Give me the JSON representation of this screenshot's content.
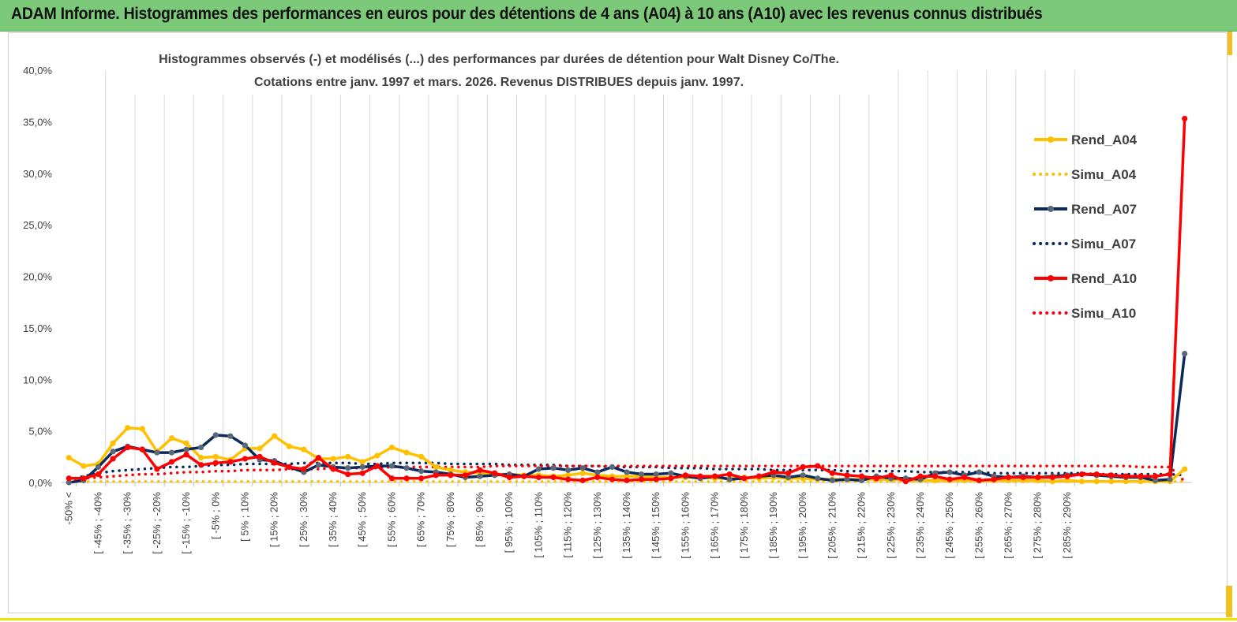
{
  "banner": {
    "title": "ADAM Informe. Histogrammes des performances en euros pour des détentions de 4 ans (A04) à 10 ans (A10) avec les revenus connus distribués"
  },
  "colors": {
    "banner_bg": "#7dc97a",
    "a04": "#ffc000",
    "a07": "#0b2a5c",
    "a10": "#ff0000",
    "grid": "#d9d9d9"
  },
  "chart_data": {
    "type": "line",
    "title": "Histogrammes observés (-) et modélisés (...) des performances par durées de détention pour Walt Disney Co/The.",
    "subtitle": "Cotations entre janv. 1997 et mars. 2026. Revenus DISTRIBUES depuis janv. 1997.",
    "ylim": [
      0,
      40
    ],
    "yticks": [
      "0,0%",
      "5,0%",
      "10,0%",
      "15,0%",
      "20,0%",
      "25,0%",
      "30,0%",
      "35,0%",
      "40,0%"
    ],
    "grid": "vertical lines at each labelled category",
    "legend_position": "right",
    "x_labels": [
      "-50% <",
      "[ -45% ; -40%",
      "[ -35% ; -30%",
      "[ -25% ; -20%",
      "[ -15% ; -10%",
      "[ -5% ; 0%",
      "[ 5% ; 10%",
      "[ 15% ; 20%",
      "[ 25% ; 30%",
      "[ 35% ; 40%",
      "[ 45% ; 50%",
      "[ 55% ; 60%",
      "[ 65% ; 70%",
      "[ 75% ; 80%",
      "[ 85% ; 90%",
      "[ 95% ; 100%",
      "[ 105% ; 110%",
      "[ 115% ; 120%",
      "[ 125% ; 130%",
      "[ 135% ; 140%",
      "[ 145% ; 150%",
      "[ 155% ; 160%",
      "[ 165% ; 170%",
      "[ 175% ; 180%",
      "[ 185% ; 190%",
      "[ 195% ; 200%",
      "[ 205% ; 210%",
      "[ 215% ; 220%",
      "[ 225% ; 230%",
      "[ 235% ; 240%",
      "[ 245% ; 250%",
      "[ 255% ; 260%",
      "[ 265% ; 270%",
      "[ 275% ; 280%",
      "[ 285% ; 290%"
    ],
    "series": [
      {
        "name": "Rend_A04",
        "style": "solid",
        "color": "#ffc000",
        "values": [
          2.4,
          1.6,
          1.8,
          3.8,
          5.3,
          5.2,
          3.0,
          4.3,
          3.8,
          2.4,
          2.5,
          2.2,
          3.3,
          3.3,
          4.5,
          3.5,
          3.2,
          2.3,
          2.3,
          2.5,
          2.0,
          2.6,
          3.4,
          2.9,
          2.5,
          1.5,
          1.2,
          1.0,
          0.9,
          0.8,
          0.8,
          0.7,
          0.7,
          0.6,
          0.7,
          0.9,
          0.7,
          0.6,
          0.6,
          0.6,
          0.5,
          0.5,
          0.5,
          0.5,
          0.4,
          0.4,
          0.5,
          0.4,
          0.5,
          0.4,
          0.4,
          0.3,
          0.3,
          0.3,
          0.3,
          0.3,
          0.3,
          0.2,
          0.2,
          0.2,
          0.2,
          0.2,
          0.2,
          0.2,
          0.2,
          0.2,
          0.2,
          0.1,
          0.2,
          0.1,
          0.1,
          0.1,
          0.1,
          0.1,
          0.1,
          0.1,
          1.3
        ]
      },
      {
        "name": "Simu_A04",
        "style": "dotted",
        "color": "#ffc000",
        "values": [
          0.1,
          0.1,
          0.1,
          0.1,
          0.1,
          0.1,
          0.1,
          0.1,
          0.1,
          0.1,
          0.1,
          0.1,
          0.1,
          0.1,
          0.1,
          0.1,
          0.1,
          0.1,
          0.1,
          0.1,
          0.1,
          0.1,
          0.1,
          0.1,
          0.1,
          0.1,
          0.1,
          0.1,
          0.1,
          0.1,
          0.1,
          0.1,
          0.1,
          0.1,
          0.1,
          0.1,
          0.1,
          0.1,
          0.1,
          0.1,
          0.1,
          0.1,
          0.1,
          0.1,
          0.1,
          0.1,
          0.1,
          0.1,
          0.1,
          0.1,
          0.1,
          0.1,
          0.1,
          0.1,
          0.1,
          0.1,
          0.1,
          0.1,
          0.1,
          0.1,
          0.1,
          0.1,
          0.1,
          0.1,
          0.1,
          0.1,
          0.1,
          0.1,
          0.1,
          0.1,
          0.1,
          0.1,
          0.1,
          0.1,
          0.1,
          0.1,
          0.1
        ]
      },
      {
        "name": "Rend_A07",
        "style": "solid",
        "color": "#0b2a5c",
        "values": [
          0.0,
          0.2,
          1.5,
          3.0,
          3.5,
          3.2,
          2.9,
          2.9,
          3.2,
          3.4,
          4.6,
          4.5,
          3.6,
          2.2,
          2.1,
          1.5,
          1.0,
          1.7,
          1.5,
          1.4,
          1.5,
          1.6,
          1.6,
          1.4,
          1.1,
          1.0,
          0.8,
          0.5,
          0.6,
          0.7,
          0.8,
          0.6,
          1.3,
          1.4,
          1.2,
          1.4,
          1.0,
          1.5,
          1.0,
          0.8,
          0.8,
          0.9,
          0.6,
          0.4,
          0.6,
          0.3,
          0.4,
          0.6,
          0.7,
          0.5,
          0.7,
          0.4,
          0.2,
          0.3,
          0.2,
          0.6,
          0.4,
          0.4,
          0.3,
          0.9,
          1.0,
          0.7,
          1.0,
          0.6,
          0.5,
          0.6,
          0.5,
          0.6,
          0.7,
          0.8,
          0.7,
          0.6,
          0.5,
          0.5,
          0.2,
          0.3,
          12.5
        ]
      },
      {
        "name": "Simu_A07",
        "style": "dotted",
        "color": "#0b2a5c",
        "values": [
          0.3,
          0.6,
          0.9,
          1.1,
          1.2,
          1.3,
          1.4,
          1.5,
          1.5,
          1.6,
          1.7,
          1.7,
          1.8,
          1.8,
          1.8,
          1.8,
          1.9,
          1.9,
          1.9,
          1.9,
          1.8,
          1.8,
          1.9,
          1.9,
          1.9,
          1.9,
          1.8,
          1.8,
          1.8,
          1.8,
          1.7,
          1.7,
          1.7,
          1.7,
          1.6,
          1.6,
          1.6,
          1.5,
          1.5,
          1.5,
          1.5,
          1.4,
          1.4,
          1.4,
          1.3,
          1.3,
          1.3,
          1.3,
          1.2,
          1.2,
          1.2,
          1.2,
          1.2,
          1.1,
          1.1,
          1.1,
          1.1,
          1.1,
          1.0,
          1.0,
          1.0,
          1.0,
          1.0,
          0.9,
          0.9,
          0.9,
          0.9,
          0.9,
          0.9,
          0.9,
          0.8,
          0.8,
          0.8,
          0.8,
          0.8,
          0.8,
          0.7
        ]
      },
      {
        "name": "Rend_A10",
        "style": "solid",
        "color": "#ff0000",
        "values": [
          0.4,
          0.4,
          0.8,
          2.3,
          3.4,
          3.2,
          1.3,
          2.0,
          2.7,
          1.7,
          1.9,
          2.0,
          2.3,
          2.5,
          1.9,
          1.5,
          1.3,
          2.4,
          1.3,
          0.8,
          0.9,
          1.6,
          0.4,
          0.4,
          0.4,
          0.7,
          0.7,
          0.7,
          1.2,
          0.9,
          0.5,
          0.6,
          0.5,
          0.5,
          0.3,
          0.2,
          0.5,
          0.3,
          0.2,
          0.3,
          0.3,
          0.4,
          0.7,
          0.6,
          0.6,
          0.8,
          0.4,
          0.6,
          1.0,
          0.9,
          1.5,
          1.6,
          0.9,
          0.7,
          0.6,
          0.4,
          0.7,
          0.1,
          0.6,
          0.6,
          0.3,
          0.5,
          0.2,
          0.3,
          0.5,
          0.5,
          0.5,
          0.5,
          0.6,
          0.8,
          0.8,
          0.7,
          0.6,
          0.6,
          0.6,
          0.8,
          35.3
        ]
      },
      {
        "name": "Simu_A10",
        "style": "dotted",
        "color": "#ff0000",
        "values": [
          0.3,
          0.4,
          0.5,
          0.6,
          0.7,
          0.8,
          0.8,
          0.9,
          1.0,
          1.0,
          1.1,
          1.1,
          1.2,
          1.2,
          1.2,
          1.3,
          1.3,
          1.3,
          1.4,
          1.4,
          1.4,
          1.4,
          1.5,
          1.5,
          1.5,
          1.5,
          1.5,
          1.5,
          1.5,
          1.6,
          1.6,
          1.6,
          1.6,
          1.6,
          1.6,
          1.6,
          1.6,
          1.6,
          1.6,
          1.6,
          1.6,
          1.6,
          1.6,
          1.6,
          1.6,
          1.6,
          1.6,
          1.6,
          1.6,
          1.6,
          1.6,
          1.6,
          1.6,
          1.6,
          1.6,
          1.6,
          1.6,
          1.6,
          1.6,
          1.6,
          1.6,
          1.6,
          1.6,
          1.6,
          1.6,
          1.6,
          1.6,
          1.6,
          1.6,
          1.6,
          1.6,
          1.6,
          1.6,
          1.5,
          1.5,
          1.5,
          0.1
        ]
      }
    ]
  }
}
